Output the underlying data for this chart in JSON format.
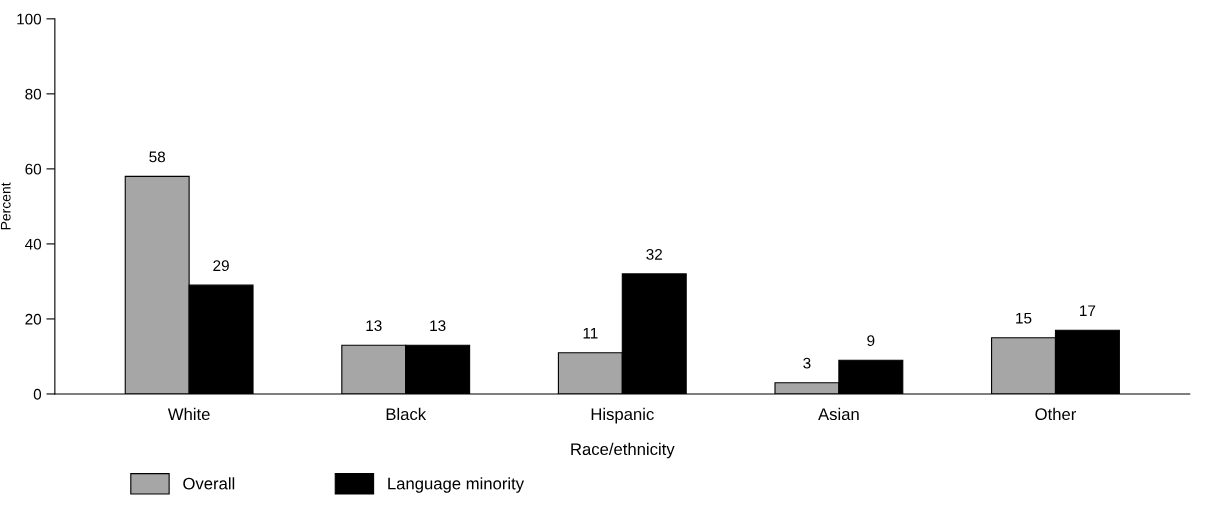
{
  "chart_data": {
    "type": "bar",
    "xlabel": "Race/ethnicity",
    "ylabel": "Percent",
    "categories": [
      "White",
      "Black",
      "Hispanic",
      "Asian",
      "Other"
    ],
    "series": [
      {
        "name": "Overall",
        "color": "#a6a6a6",
        "values": [
          58,
          13,
          11,
          3,
          15
        ]
      },
      {
        "name": "Language minority",
        "color": "#000000",
        "values": [
          29,
          13,
          32,
          9,
          17
        ]
      }
    ],
    "ylim": [
      0,
      100
    ],
    "yticks": [
      0,
      20,
      40,
      60,
      80,
      100
    ],
    "grid": false,
    "legend": "bottom left",
    "data_labels": true
  }
}
